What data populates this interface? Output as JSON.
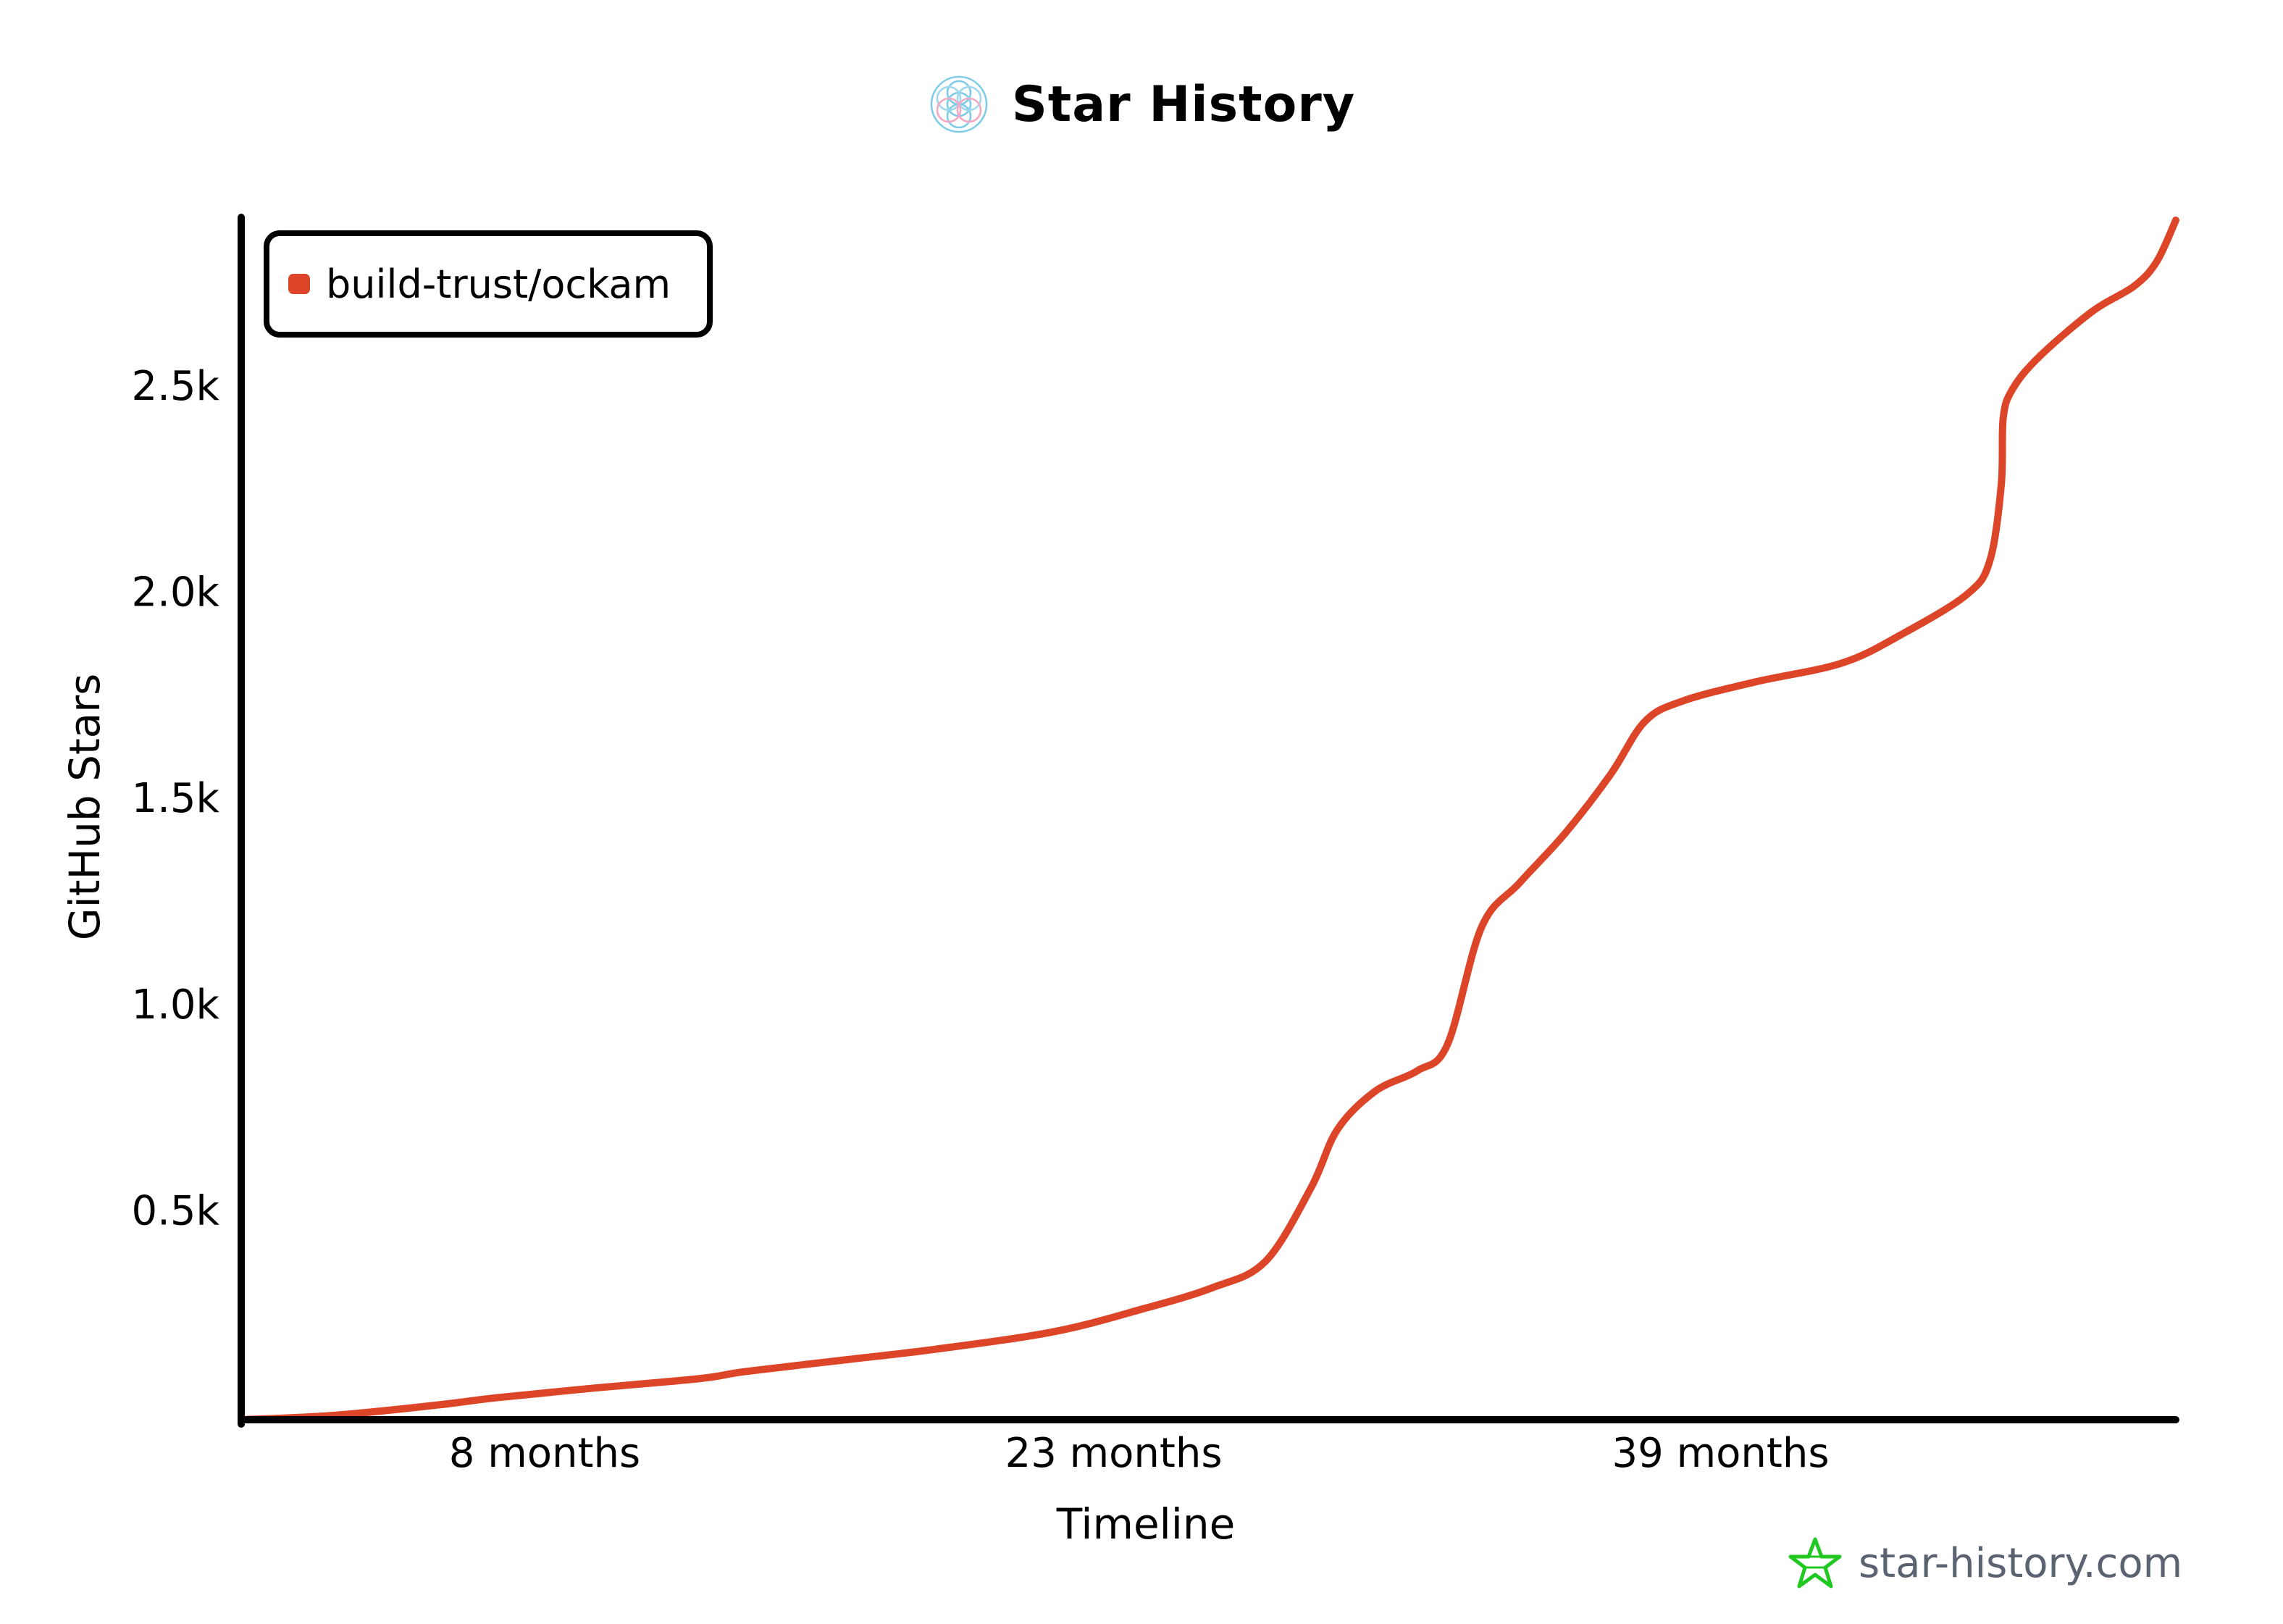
{
  "header": {
    "logo_icon": "star-history-logo-icon"
  },
  "watermark": {
    "text": "star-history.com",
    "icon": "star-icon",
    "icon_color": "#20c820"
  },
  "chart_data": {
    "type": "line",
    "title": "Star History",
    "xlabel": "Timeline",
    "ylabel": "GitHub Stars",
    "xlim": [
      0,
      51
    ],
    "ylim": [
      0,
      2916
    ],
    "grid": false,
    "legend_position": "top-left",
    "axis_color": "#000000",
    "x_ticks": [
      {
        "value": 8,
        "label": "8 months"
      },
      {
        "value": 23,
        "label": "23 months"
      },
      {
        "value": 39,
        "label": "39 months"
      }
    ],
    "y_ticks": [
      {
        "value": 500,
        "label": "0.5k"
      },
      {
        "value": 1000,
        "label": "1.0k"
      },
      {
        "value": 1500,
        "label": "1.5k"
      },
      {
        "value": 2000,
        "label": "2.0k"
      },
      {
        "value": 2500,
        "label": "2.5k"
      }
    ],
    "series": [
      {
        "name": "build-trust/ockam",
        "color": "#dd4528",
        "x": [
          0,
          2.5,
          5.2,
          6.7,
          9.1,
          12.1,
          13.3,
          16.0,
          18.3,
          21.4,
          23.7,
          25.6,
          27.0,
          28.2,
          28.9,
          29.9,
          31.0,
          31.8,
          32.7,
          33.7,
          34.9,
          36.1,
          37.0,
          38.0,
          39.9,
          42.2,
          43.8,
          45.5,
          46.1,
          46.4,
          46.45,
          46.7,
          47.4,
          48.8,
          49.9,
          50.5,
          51.0
        ],
        "y": [
          0,
          11,
          36,
          53,
          75,
          100,
          117,
          146,
          171,
          213,
          267,
          320,
          384,
          562,
          704,
          797,
          846,
          910,
          1195,
          1302,
          1422,
          1565,
          1693,
          1743,
          1789,
          1835,
          1906,
          2002,
          2084,
          2269,
          2429,
          2500,
          2578,
          2688,
          2749,
          2809,
          2909
        ]
      }
    ]
  }
}
